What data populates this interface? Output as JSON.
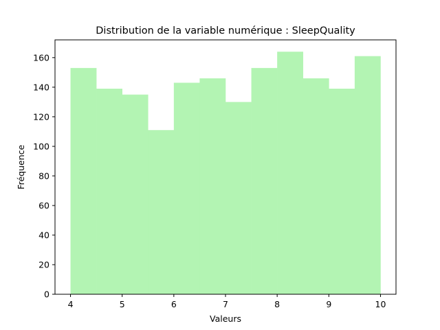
{
  "chart_data": {
    "type": "bar",
    "title": "Distribution de la variable numérique : SleepQuality",
    "xlabel": "Valeurs",
    "ylabel": "Fréquence",
    "bin_edges": [
      4.0,
      4.5,
      5.0,
      5.5,
      6.0,
      6.5,
      7.0,
      7.5,
      8.0,
      8.5,
      9.0,
      9.5,
      10.0
    ],
    "values": [
      153,
      139,
      135,
      111,
      143,
      146,
      130,
      153,
      164,
      146,
      139,
      161
    ],
    "xlim": [
      3.7,
      10.3
    ],
    "ylim": [
      0,
      172
    ],
    "xticks": [
      4,
      5,
      6,
      7,
      8,
      9,
      10
    ],
    "yticks": [
      0,
      20,
      40,
      60,
      80,
      100,
      120,
      140,
      160
    ],
    "bar_color": "#b3f4b3",
    "grid": false,
    "legend": "none"
  }
}
